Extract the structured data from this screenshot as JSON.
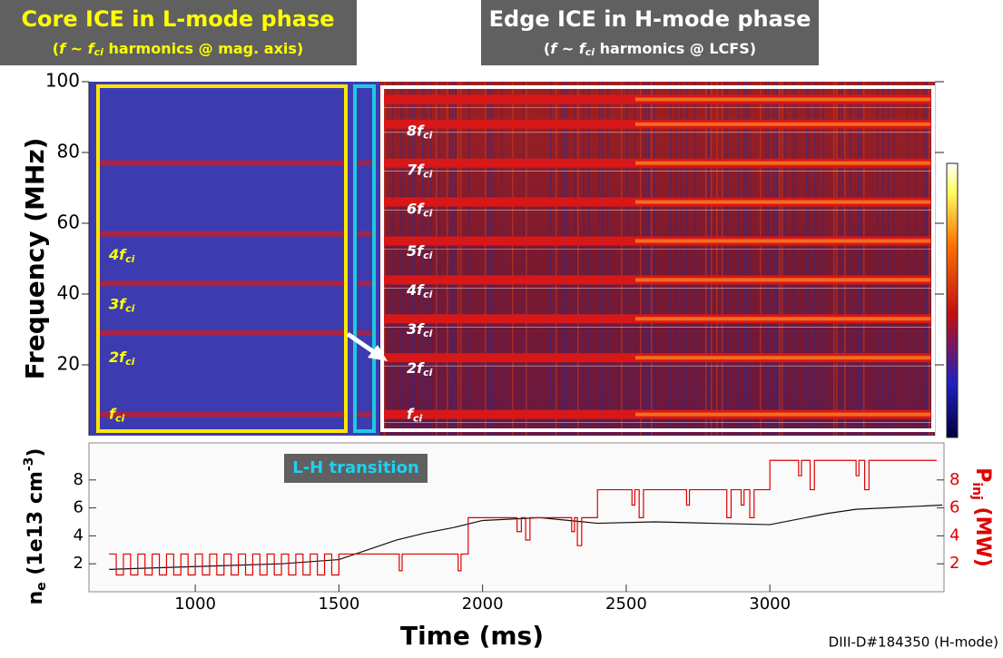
{
  "chart_data": [
    {
      "type": "spectrogram",
      "title_left": "Core ICE in L-mode phase",
      "subtitle_left": [
        "(",
        "f",
        " ~ ",
        "f",
        "ci",
        " harmonics @ mag. axis)"
      ],
      "title_right": "Edge ICE in H-mode phase",
      "subtitle_right": [
        "(",
        "f",
        " ~ ",
        "f",
        "ci",
        " harmonics @ LCFS)"
      ],
      "ylabel": "Frequency (MHz)",
      "ylim": [
        0,
        100
      ],
      "yticks": [
        20,
        40,
        60,
        80,
        100
      ],
      "xlim": [
        630,
        3606
      ],
      "core_harmonics": [
        {
          "label": "f",
          "sub": "ci",
          "freq": 6
        },
        {
          "label": "2f",
          "sub": "ci",
          "freq": 22
        },
        {
          "label": "3f",
          "sub": "ci",
          "freq": 37
        },
        {
          "label": "4f",
          "sub": "ci",
          "freq": 51
        }
      ],
      "core_bands": [
        6,
        29,
        43,
        57,
        77
      ],
      "edge_harmonics": [
        {
          "label": "f",
          "sub": "ci",
          "freq": 6
        },
        {
          "label": "2f",
          "sub": "ci",
          "freq": 19
        },
        {
          "label": "3f",
          "sub": "ci",
          "freq": 30
        },
        {
          "label": "4f",
          "sub": "ci",
          "freq": 41
        },
        {
          "label": "5f",
          "sub": "ci",
          "freq": 52
        },
        {
          "label": "6f",
          "sub": "ci",
          "freq": 64
        },
        {
          "label": "7f",
          "sub": "ci",
          "freq": 75
        },
        {
          "label": "8f",
          "sub": "ci",
          "freq": 86
        }
      ],
      "edge_bands": [
        6,
        22,
        33,
        44,
        55,
        66,
        77,
        88,
        95
      ],
      "band_color": "#d81818"
    },
    {
      "type": "line",
      "annotation": "L-H transition",
      "xlabel": "Time (ms)",
      "ylabel": [
        "n",
        "e",
        " (1e13 cm",
        "-3",
        ")"
      ],
      "y2label": [
        "P",
        "inj",
        " (MW)"
      ],
      "xlim": [
        630,
        3606
      ],
      "xticks": [
        1000,
        1500,
        2000,
        2500,
        3000
      ],
      "ylim": [
        0,
        10.65
      ],
      "yticks": [
        2,
        4,
        6,
        8
      ],
      "y2lim": [
        0,
        10.65
      ],
      "y2ticks": [
        2,
        4,
        6,
        8
      ],
      "series": [
        {
          "name": "n_e",
          "color": "#111111",
          "style": "line",
          "x": [
            700,
            1000,
            1300,
            1500,
            1600,
            1700,
            1800,
            1900,
            2000,
            2200,
            2400,
            2600,
            2800,
            3000,
            3200,
            3300,
            3400,
            3600
          ],
          "values": [
            1.6,
            1.8,
            2.0,
            2.3,
            3.0,
            3.7,
            4.2,
            4.6,
            5.1,
            5.3,
            4.9,
            5.0,
            4.9,
            4.8,
            5.6,
            5.9,
            6.0,
            6.2
          ]
        },
        {
          "name": "P_inj",
          "color": "#e00000",
          "style": "step",
          "axis": "y2",
          "x": [
            700,
            725,
            750,
            775,
            800,
            825,
            850,
            875,
            900,
            925,
            950,
            975,
            1000,
            1025,
            1050,
            1075,
            1100,
            1125,
            1150,
            1175,
            1200,
            1225,
            1250,
            1275,
            1300,
            1325,
            1350,
            1375,
            1400,
            1425,
            1450,
            1475,
            1500,
            1510,
            1710,
            1720,
            1915,
            1925,
            1950,
            2120,
            2135,
            2150,
            2165,
            2310,
            2320,
            2330,
            2345,
            2400,
            2520,
            2530,
            2545,
            2560,
            2710,
            2720,
            2850,
            2865,
            2900,
            2910,
            2930,
            2945,
            3000,
            3100,
            3110,
            3140,
            3155,
            3300,
            3310,
            3330,
            3345
          ],
          "values": [
            2.7,
            1.2,
            2.7,
            1.2,
            2.7,
            1.2,
            2.7,
            1.2,
            2.7,
            1.2,
            2.7,
            1.2,
            2.7,
            1.2,
            2.7,
            1.2,
            2.7,
            1.2,
            2.7,
            1.2,
            2.7,
            1.2,
            2.7,
            1.2,
            2.7,
            1.2,
            2.7,
            1.2,
            2.7,
            1.2,
            2.7,
            1.2,
            2.7,
            2.7,
            1.5,
            2.7,
            1.5,
            2.7,
            5.3,
            4.3,
            5.3,
            3.7,
            5.3,
            4.3,
            5.3,
            3.3,
            5.3,
            7.3,
            6.2,
            7.3,
            5.3,
            7.3,
            6.2,
            7.3,
            5.3,
            7.3,
            6.2,
            7.3,
            5.3,
            7.3,
            9.4,
            8.3,
            9.4,
            7.3,
            9.4,
            8.3,
            9.4,
            7.3,
            9.4
          ]
        }
      ],
      "footnote": "DIII-D#184350 (H-mode)"
    }
  ]
}
